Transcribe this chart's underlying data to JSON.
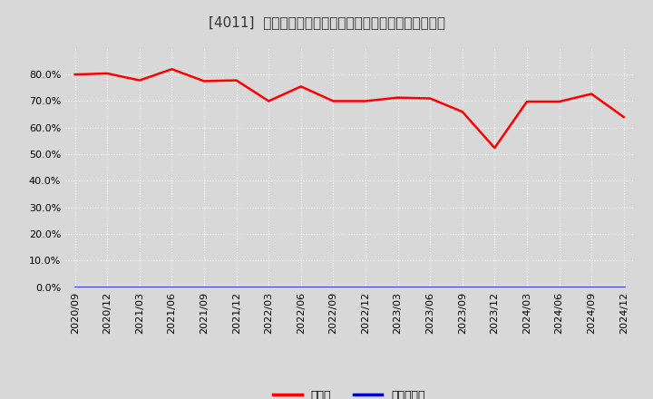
{
  "title": "[4011]  現預金、有利子負債の総資産に対する比率の推移",
  "x_labels": [
    "2020/09",
    "2020/12",
    "2021/03",
    "2021/06",
    "2021/09",
    "2021/12",
    "2022/03",
    "2022/06",
    "2022/09",
    "2022/12",
    "2023/03",
    "2023/06",
    "2023/09",
    "2023/12",
    "2024/03",
    "2024/06",
    "2024/09",
    "2024/12"
  ],
  "cash_ratio": [
    0.8,
    0.804,
    0.778,
    0.82,
    0.775,
    0.778,
    0.7,
    0.755,
    0.7,
    0.7,
    0.713,
    0.71,
    0.66,
    0.524,
    0.698,
    0.698,
    0.727,
    0.64
  ],
  "debt_ratio": [
    0.0,
    0.0,
    0.0,
    0.0,
    0.0,
    0.0,
    0.0,
    0.0,
    0.0,
    0.0,
    0.0,
    0.0,
    0.0,
    0.0,
    0.0,
    0.0,
    0.0,
    0.0
  ],
  "cash_color": "#ff0000",
  "debt_color": "#0000cc",
  "background_color": "#d8d8d8",
  "plot_bg_color": "#d8d8d8",
  "grid_color": "#ffffff",
  "ylim": [
    0.0,
    0.9
  ],
  "yticks": [
    0.0,
    0.1,
    0.2,
    0.3,
    0.4,
    0.5,
    0.6,
    0.7,
    0.8
  ],
  "legend_cash": "現預金",
  "legend_debt": "有利子負債",
  "line_width": 1.8,
  "title_fontsize": 11,
  "tick_fontsize": 8
}
